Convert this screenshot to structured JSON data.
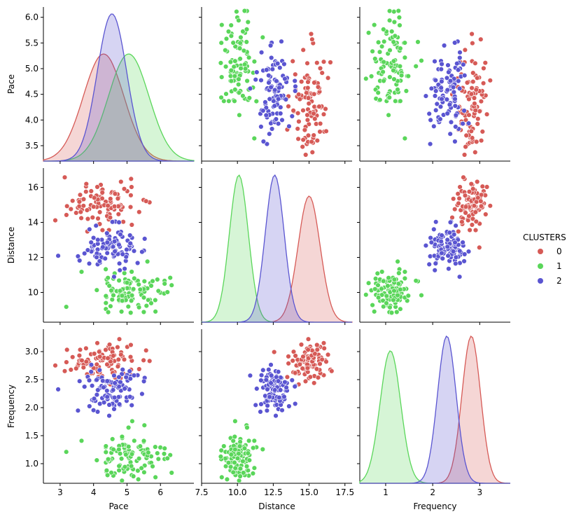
{
  "chart_data": {
    "type": "scatter",
    "subtype": "pairplot",
    "variables": [
      "Pace",
      "Distance",
      "Frequency"
    ],
    "hue": "CLUSTERS",
    "diagonal": "kde",
    "grid": false,
    "legend": {
      "title": "CLUSTERS",
      "placement": "right",
      "entries": [
        {
          "label": "0",
          "color": "#d65a56"
        },
        {
          "label": "1",
          "color": "#5ad65a"
        },
        {
          "label": "2",
          "color": "#5a55d1"
        }
      ]
    },
    "axes": {
      "Pace": {
        "label": "Pace",
        "lim": [
          2.5,
          7.0
        ],
        "ticks_x": [
          "3",
          "4",
          "5",
          "6"
        ],
        "ticks_y": [
          "3.5",
          "4.0",
          "4.5",
          "5.0",
          "5.5",
          "6.0"
        ],
        "ylim": [
          3.2,
          6.2
        ]
      },
      "Distance": {
        "label": "Distance",
        "lim": [
          7.5,
          18.0
        ],
        "ticks_x": [
          "7.5",
          "10.0",
          "12.5",
          "15.0",
          "17.5"
        ],
        "ticks_y": [
          "10",
          "12",
          "14",
          "16"
        ],
        "ylim": [
          8.3,
          17.1
        ]
      },
      "Frequency": {
        "label": "Frequency",
        "lim": [
          0.45,
          3.65
        ],
        "ticks_x": [
          "1",
          "2",
          "3"
        ],
        "ticks_y": [
          "1.0",
          "1.5",
          "2.0",
          "2.5",
          "3.0"
        ],
        "ylim": [
          0.65,
          3.4
        ]
      }
    },
    "series": [
      {
        "name": "0",
        "color": "#d65a56",
        "n": 100,
        "pace": {
          "mean": 4.3,
          "sd": 0.55
        },
        "distance": {
          "mean": 15.0,
          "sd": 0.7
        },
        "frequency": {
          "mean": 2.82,
          "sd": 0.18
        },
        "kde_peak_pace": 4.15,
        "kde_peak_distance": 14.9,
        "kde_peak_frequency": 2.9
      },
      {
        "name": "1",
        "color": "#5ad65a",
        "n": 100,
        "pace": {
          "mean": 5.05,
          "sd": 0.55
        },
        "distance": {
          "mean": 10.1,
          "sd": 0.6
        },
        "frequency": {
          "mean": 1.1,
          "sd": 0.2
        },
        "kde_peak_pace": 5.0,
        "kde_peak_distance": 10.2,
        "kde_peak_frequency": 1.0
      },
      {
        "name": "2",
        "color": "#5a55d1",
        "n": 100,
        "pace": {
          "mean": 4.55,
          "sd": 0.4
        },
        "distance": {
          "mean": 12.6,
          "sd": 0.6
        },
        "frequency": {
          "mean": 2.3,
          "sd": 0.18
        },
        "kde_peak_pace": 4.6,
        "kde_peak_distance": 12.4,
        "kde_peak_frequency": 2.35
      }
    ]
  }
}
